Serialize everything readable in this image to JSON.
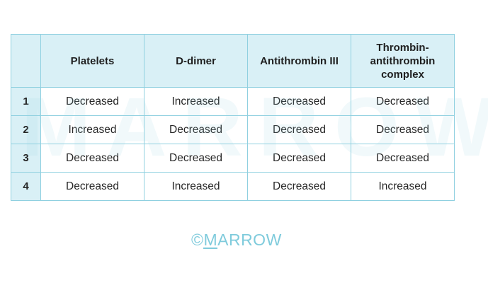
{
  "table": {
    "headers": [
      "",
      "Platelets",
      "D-dimer",
      "Antithrombin III",
      "Thrombin-antithrombin complex"
    ],
    "rows": [
      {
        "num": "1",
        "cells": [
          "Decreased",
          "Increased",
          "Decreased",
          "Decreased"
        ]
      },
      {
        "num": "2",
        "cells": [
          "Increased",
          "Decreased",
          "Decreased",
          "Decreased"
        ]
      },
      {
        "num": "3",
        "cells": [
          "Decreased",
          "Decreased",
          "Decreased",
          "Decreased"
        ]
      },
      {
        "num": "4",
        "cells": [
          "Decreased",
          "Increased",
          "Decreased",
          "Increased"
        ]
      }
    ]
  },
  "watermark": "MARROW",
  "logo": {
    "copyright": "©",
    "first_letter": "M",
    "rest": "ARROW"
  },
  "colors": {
    "header_bg": "#d9f0f6",
    "border": "#8fd0e0",
    "logo": "#7fcbdc"
  }
}
